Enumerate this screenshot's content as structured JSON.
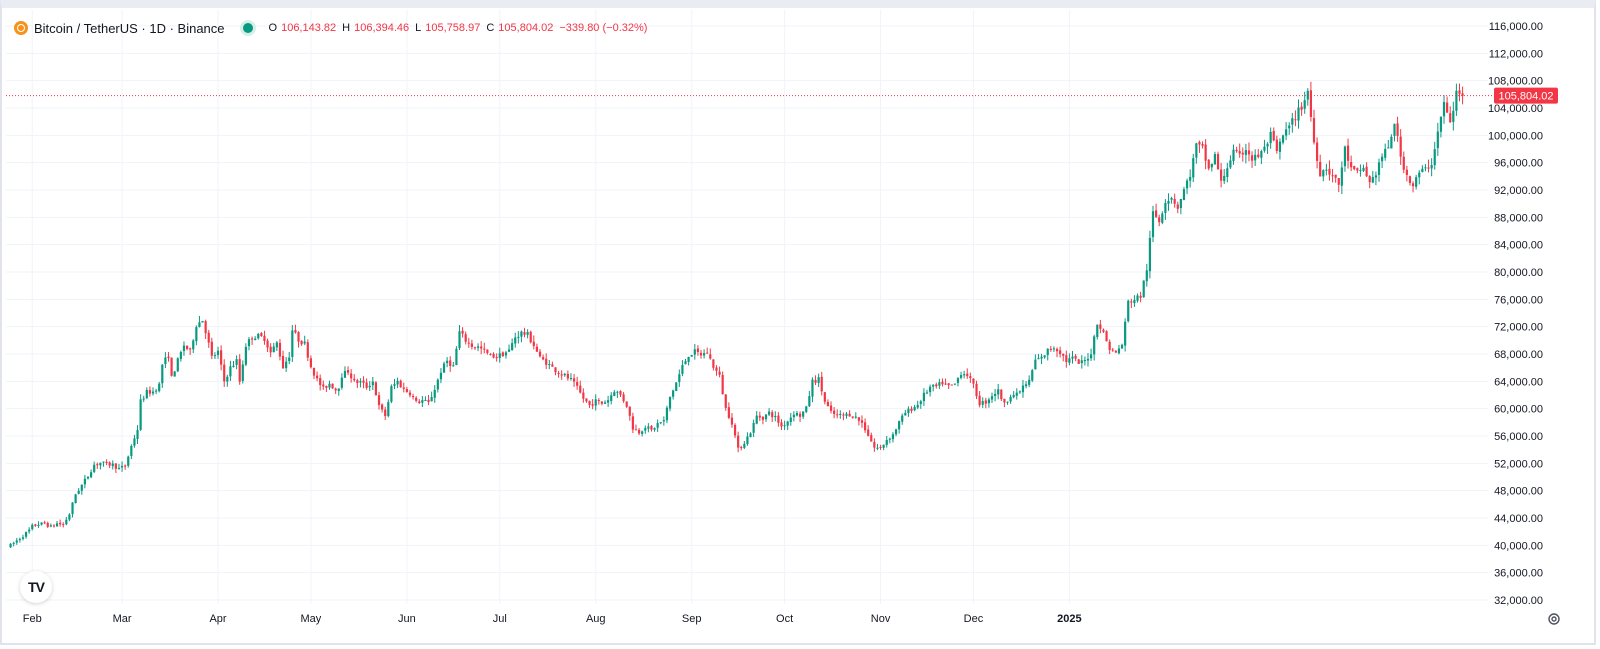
{
  "legend": {
    "symbol": "Bitcoin / TetherUS · 1D · Binance",
    "o_label": "O",
    "o_value": "106,143.82",
    "h_label": "H",
    "h_value": "106,394.46",
    "l_label": "L",
    "l_value": "105,758.97",
    "c_label": "C",
    "c_value": "105,804.02",
    "change": "−339.80 (−0.32%)"
  },
  "colors": {
    "up": "#089981",
    "down": "#f23645",
    "grid": "#f0f3fa",
    "axis_text": "#131722",
    "price_line": "#f23645",
    "coin": "#f7931a"
  },
  "icons": {
    "logo": "tradingview-logo-icon",
    "settings": "gear-icon",
    "symbol": "bitcoin-icon",
    "status": "market-open-dot-icon"
  },
  "logo_text": "TV",
  "chart_data": {
    "type": "candlestick",
    "title": "Bitcoin / TetherUS · 1D · Binance",
    "ylim": [
      31000,
      117500
    ],
    "y_ticks": [
      "116,000.00",
      "112,000.00",
      "108,000.00",
      "104,000.00",
      "100,000.00",
      "96,000.00",
      "92,000.00",
      "88,000.00",
      "84,000.00",
      "80,000.00",
      "76,000.00",
      "72,000.00",
      "68,000.00",
      "64,000.00",
      "60,000.00",
      "56,000.00",
      "52,000.00",
      "48,000.00",
      "44,000.00",
      "40,000.00",
      "36,000.00",
      "32,000.00"
    ],
    "x_ticks": [
      {
        "label": "Feb",
        "date": "2024-02-01"
      },
      {
        "label": "Mar",
        "date": "2024-03-01"
      },
      {
        "label": "Apr",
        "date": "2024-04-01"
      },
      {
        "label": "May",
        "date": "2024-05-01"
      },
      {
        "label": "Jun",
        "date": "2024-06-01"
      },
      {
        "label": "Jul",
        "date": "2024-07-01"
      },
      {
        "label": "Aug",
        "date": "2024-08-01"
      },
      {
        "label": "Sep",
        "date": "2024-09-01"
      },
      {
        "label": "Oct",
        "date": "2024-10-01"
      },
      {
        "label": "Nov",
        "date": "2024-11-01"
      },
      {
        "label": "Dec",
        "date": "2024-12-01"
      },
      {
        "label": "2025",
        "date": "2025-01-01"
      }
    ],
    "first_candle_date": "2024-01-24",
    "last_price": 105804.02,
    "last_price_label": "105,804.02",
    "close_series": [
      [
        1,
        40000
      ],
      [
        3,
        40700
      ],
      [
        5,
        41400
      ],
      [
        7,
        42200
      ],
      [
        8,
        42800
      ],
      [
        10,
        43100
      ],
      [
        12,
        43200
      ],
      [
        14,
        42700
      ],
      [
        16,
        43200
      ],
      [
        18,
        43000
      ],
      [
        20,
        44600
      ],
      [
        22,
        47500
      ],
      [
        24,
        48800
      ],
      [
        26,
        50200
      ],
      [
        28,
        51800
      ],
      [
        30,
        52100
      ],
      [
        32,
        51900
      ],
      [
        34,
        51800
      ],
      [
        36,
        51200
      ],
      [
        38,
        51600
      ],
      [
        40,
        54500
      ],
      [
        42,
        57000
      ],
      [
        43,
        61100
      ],
      [
        45,
        62400
      ],
      [
        47,
        62500
      ],
      [
        49,
        63500
      ],
      [
        50,
        66500
      ],
      [
        52,
        67800
      ],
      [
        53,
        64500
      ],
      [
        55,
        67000
      ],
      [
        57,
        69300
      ],
      [
        59,
        68300
      ],
      [
        61,
        72300
      ],
      [
        63,
        73000
      ],
      [
        64,
        71400
      ],
      [
        66,
        67500
      ],
      [
        68,
        68300
      ],
      [
        70,
        64000
      ],
      [
        72,
        66000
      ],
      [
        74,
        67000
      ],
      [
        75,
        64000
      ],
      [
        77,
        69300
      ],
      [
        79,
        70500
      ],
      [
        81,
        70600
      ],
      [
        83,
        70300
      ],
      [
        85,
        68200
      ],
      [
        87,
        69600
      ],
      [
        89,
        66100
      ],
      [
        91,
        67800
      ],
      [
        92,
        71500
      ],
      [
        94,
        70100
      ],
      [
        96,
        69500
      ],
      [
        98,
        66200
      ],
      [
        100,
        64200
      ],
      [
        102,
        62900
      ],
      [
        104,
        63700
      ],
      [
        106,
        62800
      ],
      [
        107,
        63300
      ],
      [
        108,
        64900
      ],
      [
        110,
        65500
      ],
      [
        112,
        63900
      ],
      [
        114,
        63900
      ],
      [
        116,
        63200
      ],
      [
        118,
        64000
      ],
      [
        120,
        60300
      ],
      [
        122,
        59000
      ],
      [
        124,
        63100
      ],
      [
        126,
        64000
      ],
      [
        128,
        62800
      ],
      [
        130,
        62300
      ],
      [
        132,
        60900
      ],
      [
        134,
        61200
      ],
      [
        136,
        60800
      ],
      [
        138,
        62900
      ],
      [
        140,
        65500
      ],
      [
        142,
        67000
      ],
      [
        144,
        66200
      ],
      [
        146,
        71200
      ],
      [
        148,
        70000
      ],
      [
        150,
        69200
      ],
      [
        152,
        69000
      ],
      [
        154,
        68400
      ],
      [
        156,
        67700
      ],
      [
        158,
        67700
      ],
      [
        160,
        68000
      ],
      [
        162,
        68500
      ],
      [
        164,
        70500
      ],
      [
        166,
        71100
      ],
      [
        168,
        70800
      ],
      [
        170,
        69300
      ],
      [
        172,
        67400
      ],
      [
        174,
        66800
      ],
      [
        176,
        66000
      ],
      [
        178,
        65300
      ],
      [
        180,
        64800
      ],
      [
        182,
        64200
      ],
      [
        184,
        63000
      ],
      [
        186,
        61500
      ],
      [
        188,
        60500
      ],
      [
        190,
        61100
      ],
      [
        192,
        60800
      ],
      [
        194,
        61300
      ],
      [
        196,
        62700
      ],
      [
        198,
        62000
      ],
      [
        200,
        60500
      ],
      [
        202,
        57200
      ],
      [
        204,
        56600
      ],
      [
        206,
        57400
      ],
      [
        208,
        56800
      ],
      [
        210,
        57800
      ],
      [
        212,
        58200
      ],
      [
        214,
        61700
      ],
      [
        216,
        63800
      ],
      [
        218,
        66200
      ],
      [
        220,
        67900
      ],
      [
        222,
        68300
      ],
      [
        224,
        67900
      ],
      [
        226,
        68200
      ],
      [
        228,
        66200
      ],
      [
        230,
        64700
      ],
      [
        232,
        60000
      ],
      [
        234,
        58000
      ],
      [
        236,
        54000
      ],
      [
        238,
        55100
      ],
      [
        240,
        56600
      ],
      [
        242,
        58900
      ],
      [
        244,
        58700
      ],
      [
        246,
        59400
      ],
      [
        248,
        58700
      ],
      [
        250,
        57400
      ],
      [
        252,
        58200
      ],
      [
        254,
        59400
      ],
      [
        256,
        59000
      ],
      [
        258,
        60000
      ],
      [
        260,
        64000
      ],
      [
        262,
        64300
      ],
      [
        264,
        61000
      ],
      [
        266,
        59400
      ],
      [
        268,
        59000
      ],
      [
        270,
        59000
      ],
      [
        272,
        59200
      ],
      [
        274,
        58700
      ],
      [
        276,
        57900
      ],
      [
        278,
        56200
      ],
      [
        280,
        54300
      ],
      [
        282,
        54200
      ],
      [
        284,
        55500
      ],
      [
        286,
        56200
      ],
      [
        288,
        58000
      ],
      [
        290,
        59400
      ],
      [
        292,
        60000
      ],
      [
        294,
        60600
      ],
      [
        296,
        62000
      ],
      [
        298,
        63100
      ],
      [
        300,
        63200
      ],
      [
        302,
        63800
      ],
      [
        304,
        63200
      ],
      [
        306,
        63600
      ],
      [
        308,
        65300
      ],
      [
        310,
        65000
      ],
      [
        312,
        63300
      ],
      [
        314,
        60800
      ],
      [
        316,
        61000
      ],
      [
        318,
        62000
      ],
      [
        320,
        62600
      ],
      [
        322,
        60600
      ],
      [
        324,
        62100
      ],
      [
        326,
        62000
      ],
      [
        328,
        63200
      ],
      [
        330,
        64000
      ],
      [
        332,
        67100
      ],
      [
        334,
        67400
      ],
      [
        336,
        68500
      ],
      [
        338,
        69000
      ],
      [
        340,
        68300
      ],
      [
        342,
        67000
      ],
      [
        344,
        67400
      ],
      [
        346,
        66600
      ],
      [
        348,
        67000
      ],
      [
        350,
        68200
      ],
      [
        352,
        72700
      ],
      [
        354,
        71000
      ],
      [
        356,
        68800
      ],
      [
        358,
        68100
      ],
      [
        360,
        69400
      ],
      [
        362,
        75600
      ],
      [
        364,
        76000
      ],
      [
        366,
        76500
      ],
      [
        368,
        80500
      ],
      [
        370,
        88700
      ],
      [
        372,
        87500
      ],
      [
        374,
        90500
      ],
      [
        376,
        91000
      ],
      [
        378,
        89500
      ],
      [
        380,
        92000
      ],
      [
        382,
        94300
      ],
      [
        384,
        98500
      ],
      [
        386,
        98000
      ],
      [
        388,
        95000
      ],
      [
        390,
        97000
      ],
      [
        392,
        93000
      ],
      [
        394,
        95500
      ],
      [
        396,
        97500
      ],
      [
        398,
        96800
      ],
      [
        400,
        98200
      ],
      [
        402,
        96500
      ],
      [
        404,
        97000
      ],
      [
        406,
        98000
      ],
      [
        408,
        100000
      ],
      [
        410,
        97500
      ],
      [
        412,
        99900
      ],
      [
        414,
        101200
      ],
      [
        416,
        102800
      ],
      [
        418,
        104200
      ],
      [
        420,
        106500
      ],
      [
        422,
        99000
      ],
      [
        424,
        94500
      ],
      [
        426,
        95300
      ],
      [
        428,
        94000
      ],
      [
        430,
        92800
      ],
      [
        432,
        98000
      ],
      [
        434,
        95000
      ],
      [
        436,
        94400
      ],
      [
        438,
        95300
      ],
      [
        440,
        93000
      ],
      [
        442,
        94500
      ],
      [
        444,
        97000
      ],
      [
        446,
        98000
      ],
      [
        448,
        102000
      ],
      [
        450,
        96800
      ],
      [
        452,
        94200
      ],
      [
        454,
        92600
      ],
      [
        456,
        94500
      ],
      [
        458,
        95000
      ],
      [
        460,
        96000
      ],
      [
        462,
        100500
      ],
      [
        464,
        104700
      ],
      [
        466,
        101700
      ],
      [
        468,
        106100
      ],
      [
        469,
        106143.82
      ],
      [
        470,
        105804.02
      ]
    ]
  }
}
